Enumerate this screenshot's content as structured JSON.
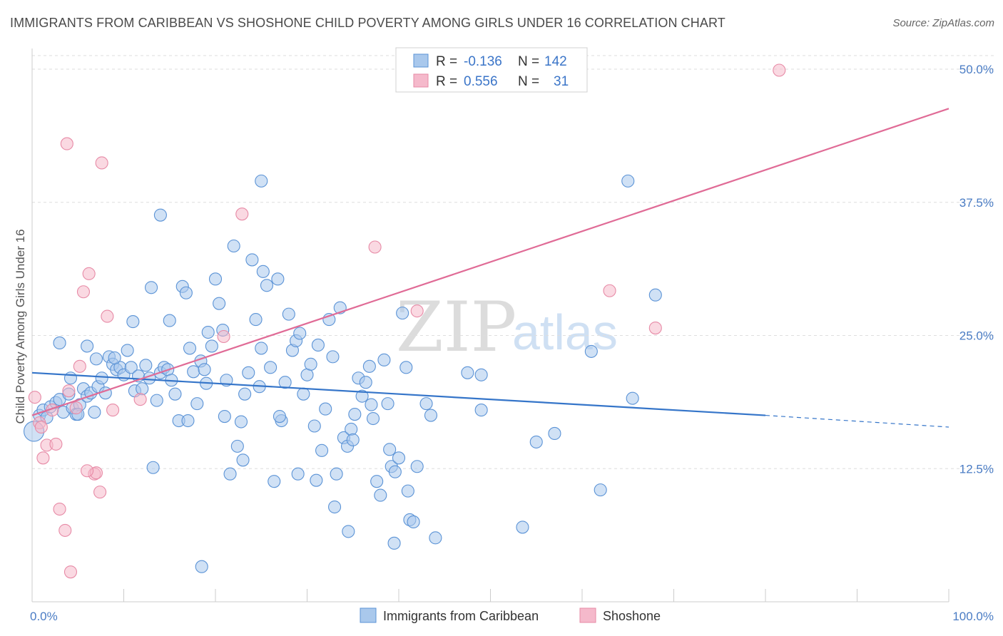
{
  "title": "IMMIGRANTS FROM CARIBBEAN VS SHOSHONE CHILD POVERTY AMONG GIRLS UNDER 16 CORRELATION CHART",
  "source": "Source: ZipAtlas.com",
  "watermark": {
    "zip": "ZIP",
    "atlas": "atlas"
  },
  "colors": {
    "blue_fill": "#a9c8ec",
    "blue_stroke": "#5b93d6",
    "blue_line": "#3575c9",
    "pink_fill": "#f5b9cb",
    "pink_stroke": "#e78aa6",
    "pink_line": "#e06b96",
    "grid": "#dedede",
    "axis_tick": "#4a7cc4"
  },
  "legend": {
    "r_label": "R =",
    "n_label": "N =",
    "series": [
      {
        "r": "-0.136",
        "n": "142"
      },
      {
        "r": "0.556",
        "n": "31"
      }
    ]
  },
  "chart_data": {
    "type": "scatter",
    "title": "IMMIGRANTS FROM CARIBBEAN VS SHOSHONE CHILD POVERTY AMONG GIRLS UNDER 16 CORRELATION CHART",
    "xlabel": "",
    "ylabel": "Child Poverty Among Girls Under 16",
    "xlim": [
      0,
      100
    ],
    "ylim": [
      0,
      50
    ],
    "x_tick_labels": [
      "0.0%",
      "100.0%"
    ],
    "y_ticks": [
      12.5,
      25.0,
      37.5,
      50.0
    ],
    "y_tick_labels": [
      "12.5%",
      "25.0%",
      "37.5%",
      "50.0%"
    ],
    "grid": true,
    "legend_position": "top-center",
    "series": [
      {
        "name": "Immigrants from Caribbean",
        "color": "#a9c8ec",
        "trend": {
          "x0": 0,
          "y0": 21.5,
          "x1": 80,
          "y1": 17.5,
          "dashed_to_x": 100,
          "dashed_to_y": 16.4
        },
        "points": [
          [
            0.2,
            16.0
          ],
          [
            0.8,
            17.5
          ],
          [
            1.2,
            18.0
          ],
          [
            1.6,
            17.3
          ],
          [
            2.0,
            18.3
          ],
          [
            2.6,
            18.7
          ],
          [
            3.0,
            19.0
          ],
          [
            3.4,
            17.8
          ],
          [
            4.0,
            19.5
          ],
          [
            4.4,
            18.2
          ],
          [
            4.8,
            17.6
          ],
          [
            5.2,
            18.5
          ],
          [
            5.6,
            20.0
          ],
          [
            6.0,
            19.3
          ],
          [
            6.4,
            19.6
          ],
          [
            6.8,
            17.8
          ],
          [
            7.2,
            20.2
          ],
          [
            7.6,
            21.0
          ],
          [
            8.0,
            19.6
          ],
          [
            8.4,
            23.0
          ],
          [
            8.8,
            22.3
          ],
          [
            9.2,
            21.8
          ],
          [
            9.6,
            22.0
          ],
          [
            10.0,
            21.3
          ],
          [
            10.4,
            23.6
          ],
          [
            10.8,
            22.0
          ],
          [
            11.2,
            19.8
          ],
          [
            11.6,
            21.2
          ],
          [
            12.0,
            20.0
          ],
          [
            12.4,
            22.2
          ],
          [
            12.8,
            21.0
          ],
          [
            13.2,
            12.6
          ],
          [
            13.6,
            18.9
          ],
          [
            14.0,
            21.5
          ],
          [
            14.4,
            22.0
          ],
          [
            14.8,
            21.8
          ],
          [
            15.2,
            20.8
          ],
          [
            15.6,
            19.5
          ],
          [
            16.0,
            17.0
          ],
          [
            16.4,
            29.6
          ],
          [
            16.8,
            29.0
          ],
          [
            17.2,
            23.8
          ],
          [
            17.6,
            21.6
          ],
          [
            18.0,
            18.6
          ],
          [
            18.4,
            22.6
          ],
          [
            18.8,
            21.8
          ],
          [
            19.2,
            25.3
          ],
          [
            19.6,
            24.0
          ],
          [
            20.0,
            30.3
          ],
          [
            20.4,
            28.0
          ],
          [
            20.8,
            25.5
          ],
          [
            21.2,
            20.8
          ],
          [
            21.6,
            12.0
          ],
          [
            22.0,
            33.4
          ],
          [
            22.4,
            14.6
          ],
          [
            22.8,
            16.9
          ],
          [
            23.2,
            19.5
          ],
          [
            23.6,
            21.5
          ],
          [
            24.0,
            32.1
          ],
          [
            24.4,
            26.5
          ],
          [
            24.8,
            20.2
          ],
          [
            25.2,
            31.0
          ],
          [
            25.6,
            29.7
          ],
          [
            26.0,
            22.0
          ],
          [
            26.4,
            11.3
          ],
          [
            26.8,
            30.3
          ],
          [
            27.2,
            17.0
          ],
          [
            27.6,
            20.6
          ],
          [
            28.0,
            27.0
          ],
          [
            28.4,
            23.6
          ],
          [
            28.8,
            24.5
          ],
          [
            29.2,
            25.2
          ],
          [
            29.6,
            19.5
          ],
          [
            30.0,
            21.3
          ],
          [
            30.4,
            22.3
          ],
          [
            30.8,
            16.5
          ],
          [
            31.2,
            24.1
          ],
          [
            31.6,
            14.2
          ],
          [
            32.0,
            18.1
          ],
          [
            32.4,
            26.5
          ],
          [
            32.8,
            23.0
          ],
          [
            33.2,
            12.0
          ],
          [
            33.6,
            27.6
          ],
          [
            34.0,
            15.4
          ],
          [
            34.4,
            14.6
          ],
          [
            34.8,
            16.2
          ],
          [
            35.2,
            17.6
          ],
          [
            35.6,
            21.0
          ],
          [
            36.0,
            19.3
          ],
          [
            36.4,
            20.6
          ],
          [
            36.8,
            22.1
          ],
          [
            37.2,
            17.2
          ],
          [
            37.6,
            11.3
          ],
          [
            38.0,
            10.0
          ],
          [
            38.4,
            22.7
          ],
          [
            38.8,
            18.6
          ],
          [
            39.2,
            12.7
          ],
          [
            39.6,
            12.2
          ],
          [
            40.0,
            13.5
          ],
          [
            40.4,
            27.1
          ],
          [
            40.8,
            22.0
          ],
          [
            41.2,
            7.7
          ],
          [
            41.6,
            7.5
          ],
          [
            42.0,
            12.7
          ],
          [
            5.0,
            17.6
          ],
          [
            7.0,
            22.8
          ],
          [
            9.0,
            22.9
          ],
          [
            11.0,
            26.3
          ],
          [
            13.0,
            29.5
          ],
          [
            15.0,
            26.4
          ],
          [
            17.0,
            17.0
          ],
          [
            19.0,
            20.5
          ],
          [
            21.0,
            17.4
          ],
          [
            23.0,
            13.3
          ],
          [
            25.0,
            23.8
          ],
          [
            27.0,
            17.4
          ],
          [
            29.0,
            12.0
          ],
          [
            31.0,
            11.4
          ],
          [
            33.0,
            8.9
          ],
          [
            35.0,
            15.2
          ],
          [
            37.0,
            18.5
          ],
          [
            39.0,
            14.3
          ],
          [
            41.0,
            10.4
          ],
          [
            14.0,
            36.3
          ],
          [
            25.0,
            39.5
          ],
          [
            43.5,
            17.5
          ],
          [
            47.5,
            21.5
          ],
          [
            49.0,
            21.3
          ],
          [
            55.0,
            15.0
          ],
          [
            39.5,
            5.5
          ],
          [
            49.0,
            18.0
          ],
          [
            34.5,
            6.6
          ],
          [
            43.0,
            18.6
          ],
          [
            53.5,
            7.0
          ],
          [
            18.5,
            3.3
          ],
          [
            61.0,
            23.5
          ],
          [
            65.5,
            19.1
          ],
          [
            68.0,
            28.8
          ],
          [
            65.0,
            39.5
          ],
          [
            3.0,
            24.3
          ],
          [
            4.2,
            21.0
          ],
          [
            6.0,
            24.0
          ],
          [
            44.0,
            6.0
          ],
          [
            57.0,
            15.8
          ],
          [
            62.0,
            10.5
          ]
        ]
      },
      {
        "name": "Shoshone",
        "color": "#f5b9cb",
        "trend": {
          "x0": 0,
          "y0": 17.5,
          "x1": 100,
          "y1": 46.3
        },
        "points": [
          [
            0.3,
            19.2
          ],
          [
            0.8,
            16.8
          ],
          [
            1.2,
            13.5
          ],
          [
            1.6,
            14.7
          ],
          [
            2.2,
            18.0
          ],
          [
            2.6,
            14.8
          ],
          [
            3.0,
            8.7
          ],
          [
            3.6,
            6.7
          ],
          [
            4.0,
            19.8
          ],
          [
            4.2,
            2.8
          ],
          [
            5.2,
            22.1
          ],
          [
            5.6,
            29.1
          ],
          [
            6.2,
            30.8
          ],
          [
            6.8,
            12.0
          ],
          [
            7.0,
            12.1
          ],
          [
            7.4,
            10.3
          ],
          [
            8.2,
            26.8
          ],
          [
            8.8,
            18.0
          ],
          [
            11.8,
            19.0
          ],
          [
            6.0,
            12.3
          ],
          [
            4.8,
            18.2
          ],
          [
            3.8,
            43.0
          ],
          [
            7.6,
            41.2
          ],
          [
            22.9,
            36.4
          ],
          [
            20.9,
            24.9
          ],
          [
            37.4,
            33.3
          ],
          [
            42.0,
            27.3
          ],
          [
            63.0,
            29.2
          ],
          [
            68.0,
            25.7
          ],
          [
            81.5,
            49.9
          ],
          [
            1.0,
            16.4
          ]
        ]
      }
    ]
  }
}
